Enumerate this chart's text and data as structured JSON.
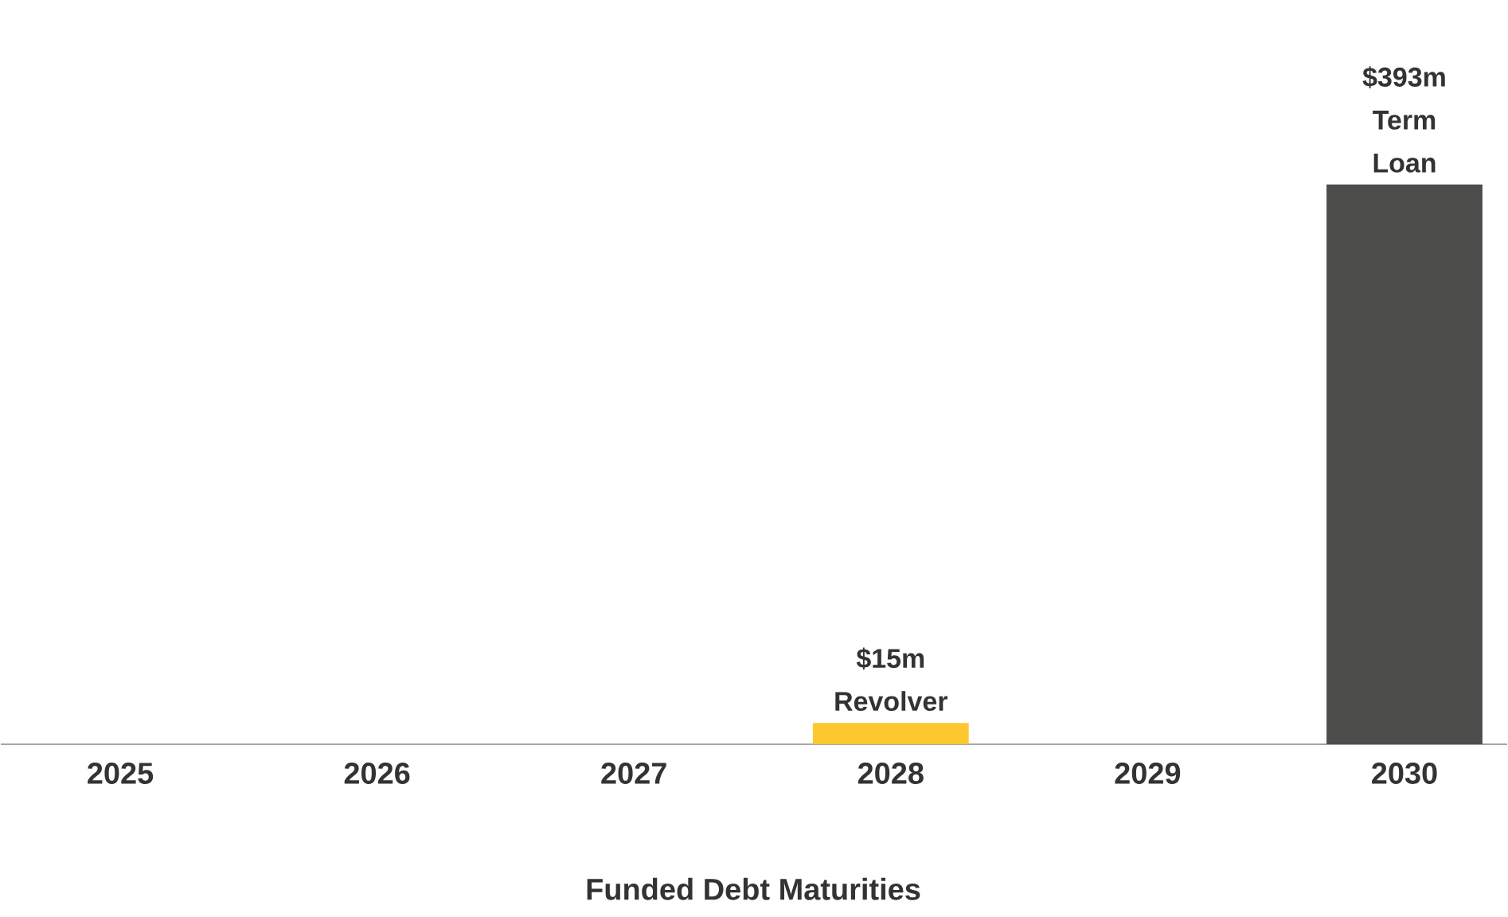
{
  "chart_data": {
    "type": "bar",
    "xlabel": "Funded Debt Maturities",
    "categories": [
      "2025",
      "2026",
      "2027",
      "2028",
      "2029",
      "2030"
    ],
    "values": [
      0,
      0,
      0,
      15,
      0,
      393
    ],
    "colors": [
      "#fdc82f",
      "#fdc82f",
      "#fdc82f",
      "#fdc82f",
      "#4d4d4b",
      "#4d4d4b"
    ],
    "value_labels": [
      null,
      null,
      null,
      "$15m Revolver",
      null,
      "$393m Term Loan"
    ]
  }
}
